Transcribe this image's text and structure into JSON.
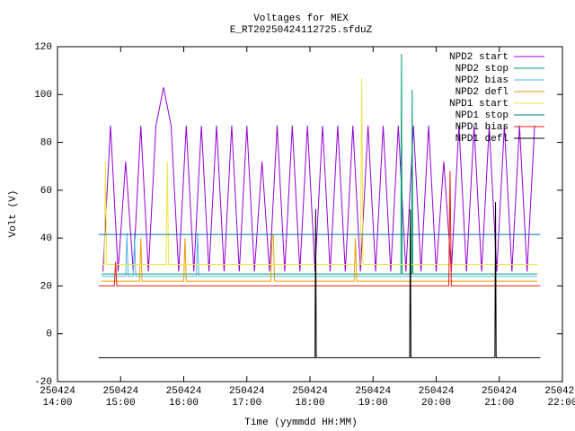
{
  "chart_data": {
    "type": "line",
    "title": "Voltages for MEX",
    "subtitle": "E_RT20250424112725.sfduZ",
    "xlabel": "Time (yymmdd HH:MM)",
    "ylabel": "Volt (V)",
    "xlim": [
      14,
      22
    ],
    "xticks": [
      {
        "value": 14,
        "label": "250424\n14:00"
      },
      {
        "value": 15,
        "label": "250424\n15:00"
      },
      {
        "value": 16,
        "label": "250424\n16:00"
      },
      {
        "value": 17,
        "label": "250424\n17:00"
      },
      {
        "value": 18,
        "label": "250424\n18:00"
      },
      {
        "value": 19,
        "label": "250424\n19:00"
      },
      {
        "value": 20,
        "label": "250424\n20:00"
      },
      {
        "value": 21,
        "label": "250424\n21:00"
      },
      {
        "value": 22,
        "label": "250424\n22:00"
      }
    ],
    "ylim": [
      -20,
      120
    ],
    "yticks": [
      -20,
      0,
      20,
      40,
      60,
      80,
      100,
      120
    ],
    "grid": false,
    "legend": "top-right",
    "series": [
      {
        "name": "NPD2 start",
        "color": "#9400d3",
        "x": [
          14.72,
          14.84,
          14.96,
          15.08,
          15.2,
          15.32,
          15.44,
          15.56,
          15.68,
          15.8,
          15.92,
          16.04,
          16.16,
          16.28,
          16.4,
          16.52,
          16.64,
          16.76,
          16.88,
          17.0,
          17.12,
          17.24,
          17.36,
          17.48,
          17.6,
          17.72,
          17.84,
          17.96,
          18.08,
          18.2,
          18.32,
          18.44,
          18.56,
          18.68,
          18.8,
          18.92,
          19.04,
          19.16,
          19.28,
          19.4,
          19.52,
          19.64,
          19.76,
          19.88,
          20.0,
          20.12,
          20.24,
          20.36,
          20.48,
          20.6,
          20.72,
          20.84,
          20.96,
          21.08,
          21.2,
          21.32,
          21.44,
          21.56
        ],
        "values": [
          26,
          87,
          26,
          72,
          26,
          87,
          26,
          87,
          103,
          87,
          26,
          87,
          26,
          87,
          26,
          87,
          26,
          87,
          26,
          87,
          26,
          72,
          26,
          87,
          26,
          87,
          26,
          87,
          26,
          87,
          26,
          87,
          26,
          87,
          26,
          87,
          26,
          87,
          26,
          87,
          26,
          87,
          26,
          87,
          26,
          72,
          26,
          87,
          26,
          87,
          26,
          87,
          26,
          87,
          26,
          87,
          26,
          87
        ]
      },
      {
        "name": "NPD2 stop",
        "color": "#009e73",
        "x": [
          14.7,
          19.44,
          19.45,
          19.46,
          19.61,
          19.62,
          19.63,
          21.6
        ],
        "values": [
          25,
          25,
          117,
          25,
          25,
          102,
          25,
          25
        ]
      },
      {
        "name": "NPD2 bias",
        "color": "#56b4e9",
        "x": [
          14.7,
          15.08,
          15.1,
          15.12,
          15.2,
          15.22,
          15.24,
          16.2,
          16.22,
          16.24,
          21.6
        ],
        "values": [
          24,
          24,
          42,
          24,
          24,
          42,
          24,
          24,
          42,
          24,
          24
        ]
      },
      {
        "name": "NPD2 defl",
        "color": "#e69f00",
        "x": [
          14.7,
          15.3,
          15.32,
          15.34,
          16.0,
          16.02,
          16.04,
          17.38,
          17.4,
          17.42,
          17.44,
          18.7,
          18.72,
          18.74,
          21.6
        ],
        "values": [
          22,
          22,
          40,
          22,
          22,
          40,
          22,
          22,
          41,
          41,
          22,
          22,
          40,
          22,
          22
        ]
      },
      {
        "name": "NPD1 start",
        "color": "#f0e442",
        "x": [
          14.7,
          14.74,
          14.76,
          14.78,
          15.72,
          15.74,
          15.76,
          18.8,
          18.82,
          18.84,
          21.6
        ],
        "values": [
          29,
          29,
          72,
          29,
          29,
          72,
          29,
          29,
          107,
          29,
          29
        ]
      },
      {
        "name": "NPD1 stop",
        "color": "#0072b2",
        "x": [
          14.65,
          21.65
        ],
        "values": [
          41.5,
          41.5
        ]
      },
      {
        "name": "NPD1 bias",
        "color": "#e51e10",
        "x": [
          14.65,
          14.9,
          14.92,
          14.94,
          20.2,
          20.22,
          20.24,
          21.65
        ],
        "values": [
          20,
          20,
          30,
          20,
          20,
          68,
          20,
          20
        ]
      },
      {
        "name": "NPD1 defl",
        "color": "#000000",
        "x": [
          14.65,
          18.08,
          18.09,
          18.1,
          19.58,
          19.59,
          19.6,
          20.93,
          20.94,
          20.95,
          21.65
        ],
        "values": [
          -10,
          -10,
          52,
          -10,
          -10,
          52,
          -10,
          -10,
          55,
          -10,
          -10
        ]
      }
    ]
  }
}
